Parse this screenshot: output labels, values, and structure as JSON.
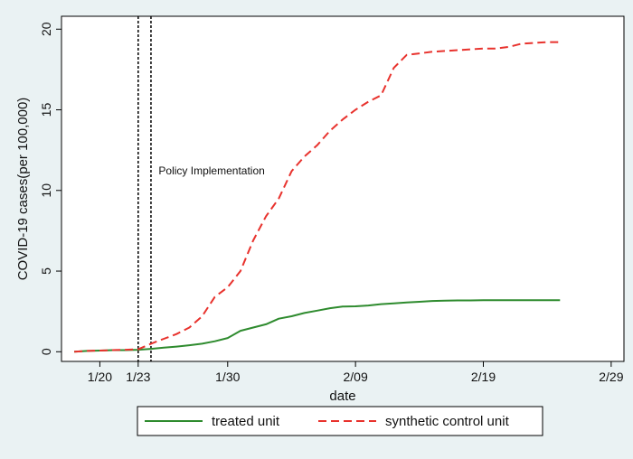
{
  "chart_data": {
    "type": "line",
    "title": "",
    "xlabel": "date",
    "ylabel": "COVID-19 cases(per 100,000)",
    "x_ticks": [
      "1/20",
      "1/23",
      "1/30",
      "2/09",
      "2/19",
      "2/29"
    ],
    "x_tick_days": [
      0,
      3,
      10,
      20,
      30,
      40
    ],
    "xlim_days": [
      -3,
      41
    ],
    "y_ticks": [
      0,
      5,
      10,
      15,
      20
    ],
    "ylim": [
      -0.6,
      20.8
    ],
    "grid": false,
    "legend_placement": "bottom",
    "annotations": [
      {
        "text": "Policy Implementation",
        "x_day": 4.6,
        "y": 11
      }
    ],
    "reference_lines": [
      {
        "x_day": 3,
        "style": "dotted"
      },
      {
        "x_day": 4,
        "style": "dotted"
      }
    ],
    "series": [
      {
        "name": "treated unit",
        "color": "#2e8b2e",
        "style": "solid",
        "x_days": [
          -2,
          -1,
          0,
          1,
          2,
          3,
          4,
          5,
          6,
          7,
          8,
          9,
          10,
          11,
          12,
          13,
          14,
          15,
          16,
          17,
          18,
          19,
          20,
          21,
          22,
          23,
          24,
          25,
          26,
          27,
          28,
          29,
          30,
          31,
          32,
          33,
          34,
          35,
          36
        ],
        "values": [
          0.0,
          0.05,
          0.07,
          0.1,
          0.1,
          0.12,
          0.18,
          0.25,
          0.32,
          0.4,
          0.5,
          0.65,
          0.85,
          1.3,
          1.5,
          1.7,
          2.05,
          2.2,
          2.4,
          2.55,
          2.7,
          2.8,
          2.82,
          2.87,
          2.95,
          3.0,
          3.05,
          3.1,
          3.15,
          3.17,
          3.18,
          3.18,
          3.19,
          3.19,
          3.2,
          3.2,
          3.2,
          3.2,
          3.2
        ]
      },
      {
        "name": "synthetic control unit",
        "color": "#e8322d",
        "style": "dashed",
        "x_days": [
          -2,
          -1,
          0,
          1,
          2,
          3,
          4,
          5,
          6,
          7,
          8,
          9,
          10,
          11,
          12,
          13,
          14,
          15,
          16,
          17,
          18,
          19,
          20,
          21,
          22,
          23,
          24,
          25,
          26,
          27,
          28,
          29,
          30,
          31,
          32,
          33,
          34,
          35,
          36
        ],
        "values": [
          0.0,
          0.05,
          0.07,
          0.1,
          0.12,
          0.15,
          0.5,
          0.8,
          1.1,
          1.5,
          2.2,
          3.4,
          4.0,
          5.0,
          6.9,
          8.4,
          9.5,
          11.2,
          12.1,
          12.8,
          13.7,
          14.4,
          15.0,
          15.5,
          15.9,
          17.6,
          18.4,
          18.5,
          18.6,
          18.65,
          18.7,
          18.75,
          18.8,
          18.8,
          18.9,
          19.1,
          19.15,
          19.2,
          19.2
        ]
      }
    ]
  }
}
